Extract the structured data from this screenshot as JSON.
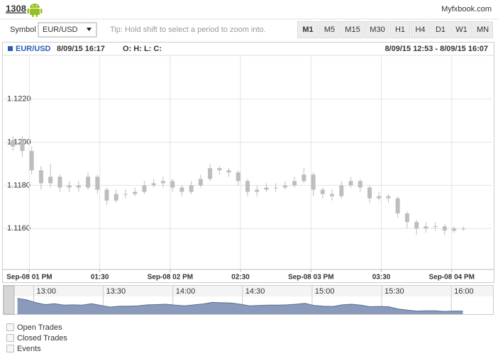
{
  "header": {
    "account": "1308",
    "site": "Myfxbook.com"
  },
  "toolbar": {
    "symbol_label": "Symbol",
    "symbol": "EUR/USD",
    "tip": "Tip: Hold shift to select a period to zoom into.",
    "timeframes": [
      "M1",
      "M5",
      "M15",
      "M30",
      "H1",
      "H4",
      "D1",
      "W1",
      "MN"
    ],
    "active_timeframe": 0
  },
  "chart_data": {
    "type": "candlestick",
    "symbol": "EUR/USD",
    "info": "8/09/15 16:17",
    "ohlc_label": "O: H: L: C:",
    "range": "8/09/15 12:53 - 8/09/15 16:07",
    "color": "#bdbdbd",
    "grid": true,
    "x": [
      773,
      777,
      781,
      785,
      789,
      793,
      797,
      801,
      805,
      809,
      813,
      817,
      821,
      825,
      829,
      833,
      837,
      841,
      845,
      849,
      853,
      857,
      861,
      865,
      869,
      873,
      877,
      881,
      885,
      889,
      893,
      897,
      901,
      905,
      909,
      913,
      917,
      921,
      925,
      929,
      933,
      937,
      941,
      945,
      949,
      953,
      957,
      961,
      965
    ],
    "open": [
      1.1198,
      1.1201,
      1.1196,
      1.1187,
      1.1181,
      1.1184,
      1.1179,
      1.118,
      1.1179,
      1.1184,
      1.1178,
      1.1173,
      1.1176,
      1.1176,
      1.1177,
      1.118,
      1.1181,
      1.1182,
      1.1179,
      1.1177,
      1.118,
      1.1183,
      1.1188,
      1.1187,
      1.1186,
      1.1182,
      1.1177,
      1.1178,
      1.1179,
      1.1179,
      1.118,
      1.1182,
      1.1185,
      1.1178,
      1.1176,
      1.1175,
      1.118,
      1.1182,
      1.1179,
      1.1174,
      1.1175,
      1.1174,
      1.1167,
      1.1163,
      1.116,
      1.1161,
      1.1161,
      1.1159,
      1.116
    ],
    "high": [
      1.1203,
      1.1203,
      1.1198,
      1.1189,
      1.119,
      1.1185,
      1.1182,
      1.1182,
      1.1186,
      1.1185,
      1.1179,
      1.1178,
      1.1178,
      1.1179,
      1.1182,
      1.1183,
      1.1184,
      1.1183,
      1.118,
      1.1182,
      1.1185,
      1.119,
      1.1189,
      1.1188,
      1.1187,
      1.1183,
      1.118,
      1.1181,
      1.1181,
      1.1182,
      1.1184,
      1.1188,
      1.1186,
      1.1179,
      1.1178,
      1.1182,
      1.1184,
      1.1183,
      1.118,
      1.1177,
      1.1176,
      1.1175,
      1.1168,
      1.1164,
      1.1163,
      1.1163,
      1.1162,
      1.1161,
      1.1161
    ],
    "low": [
      1.1196,
      1.1193,
      1.1185,
      1.1178,
      1.1179,
      1.1177,
      1.1177,
      1.1177,
      1.1178,
      1.1176,
      1.1171,
      1.1172,
      1.1174,
      1.1175,
      1.1176,
      1.1179,
      1.1179,
      1.1177,
      1.1175,
      1.1176,
      1.1179,
      1.1182,
      1.1185,
      1.1184,
      1.118,
      1.1175,
      1.1175,
      1.1177,
      1.1177,
      1.1178,
      1.1179,
      1.1181,
      1.1175,
      1.1174,
      1.1173,
      1.1174,
      1.1179,
      1.1177,
      1.1172,
      1.1173,
      1.1172,
      1.1165,
      1.116,
      1.1157,
      1.1158,
      1.1159,
      1.1157,
      1.1158,
      1.1159
    ],
    "close": [
      1.1201,
      1.1196,
      1.1187,
      1.1181,
      1.1184,
      1.1179,
      1.118,
      1.1179,
      1.1184,
      1.1178,
      1.1173,
      1.1176,
      1.1176,
      1.1177,
      1.118,
      1.1181,
      1.1182,
      1.1179,
      1.1177,
      1.118,
      1.1183,
      1.1188,
      1.1187,
      1.1186,
      1.1182,
      1.1177,
      1.1178,
      1.1179,
      1.1179,
      1.118,
      1.1182,
      1.1185,
      1.1178,
      1.1176,
      1.1175,
      1.118,
      1.1182,
      1.1179,
      1.1174,
      1.1175,
      1.1174,
      1.1167,
      1.1163,
      1.116,
      1.1161,
      1.1161,
      1.1159,
      1.116,
      1.116
    ],
    "xlim": [
      769,
      977
    ],
    "ylim": [
      1.1141,
      1.124
    ],
    "xticks": [
      {
        "value": 780,
        "label": "Sep-08 01 PM"
      },
      {
        "value": 810,
        "label": "01:30"
      },
      {
        "value": 840,
        "label": "Sep-08 02 PM"
      },
      {
        "value": 870,
        "label": "02:30"
      },
      {
        "value": 900,
        "label": "Sep-08 03 PM"
      },
      {
        "value": 930,
        "label": "03:30"
      },
      {
        "value": 960,
        "label": "Sep-08 04 PM"
      }
    ],
    "yticks": [
      {
        "value": 1.116,
        "label": "1.1160"
      },
      {
        "value": 1.118,
        "label": "1.1180"
      },
      {
        "value": 1.12,
        "label": "1.1200"
      },
      {
        "value": 1.122,
        "label": "1.1220"
      }
    ],
    "navigator": {
      "xlim": [
        767,
        978
      ],
      "ylim": [
        1.115,
        1.1205
      ],
      "color": "#8a9abb",
      "line_color": "#5b6d94",
      "xticks": [
        {
          "value": 780,
          "label": "13:00"
        },
        {
          "value": 810,
          "label": "13:30"
        },
        {
          "value": 840,
          "label": "14:00"
        },
        {
          "value": 870,
          "label": "14:30"
        },
        {
          "value": 900,
          "label": "15:00"
        },
        {
          "value": 930,
          "label": "15:30"
        },
        {
          "value": 960,
          "label": "16:00"
        }
      ]
    }
  },
  "options": [
    "Open Trades",
    "Closed Trades",
    "Events"
  ]
}
